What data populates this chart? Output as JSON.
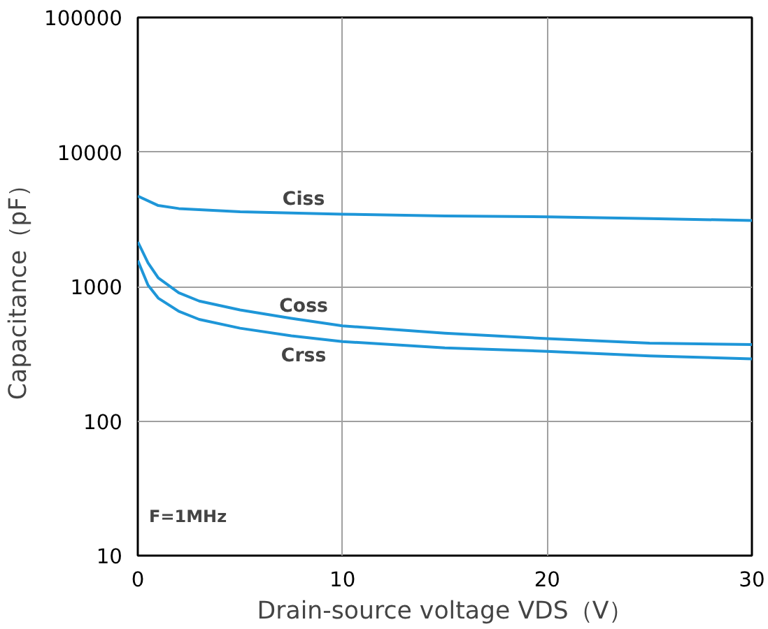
{
  "chart_data": {
    "type": "line",
    "xlabel": "Drain-source voltage VDS（V）",
    "ylabel": "Capacitance（pF）",
    "log": "y",
    "xlim": [
      0,
      30
    ],
    "ylim": [
      10,
      100000
    ],
    "xticks": [
      0,
      10,
      20,
      30
    ],
    "yticks": [
      10,
      100,
      1000,
      10000,
      100000
    ],
    "grid": true,
    "series": [
      {
        "name": "Ciss",
        "color": "#1e96d8",
        "x": [
          0,
          1,
          2,
          5,
          10,
          15,
          20,
          25,
          30
        ],
        "values": [
          4700,
          4000,
          3800,
          3600,
          3450,
          3350,
          3300,
          3200,
          3100
        ]
      },
      {
        "name": "Coss",
        "color": "#1e96d8",
        "x": [
          0,
          0.5,
          1,
          2,
          3,
          5,
          7.5,
          10,
          15,
          20,
          25,
          30
        ],
        "values": [
          2150,
          1500,
          1160,
          900,
          780,
          670,
          580,
          510,
          450,
          410,
          380,
          370
        ]
      },
      {
        "name": "Crss",
        "color": "#1e96d8",
        "x": [
          0,
          0.5,
          1,
          2,
          3,
          5,
          7.5,
          10,
          15,
          20,
          25,
          30
        ],
        "values": [
          1560,
          1025,
          820,
          655,
          570,
          490,
          430,
          390,
          350,
          330,
          305,
          290
        ]
      }
    ],
    "annotations": [
      "F=1MHz"
    ]
  }
}
